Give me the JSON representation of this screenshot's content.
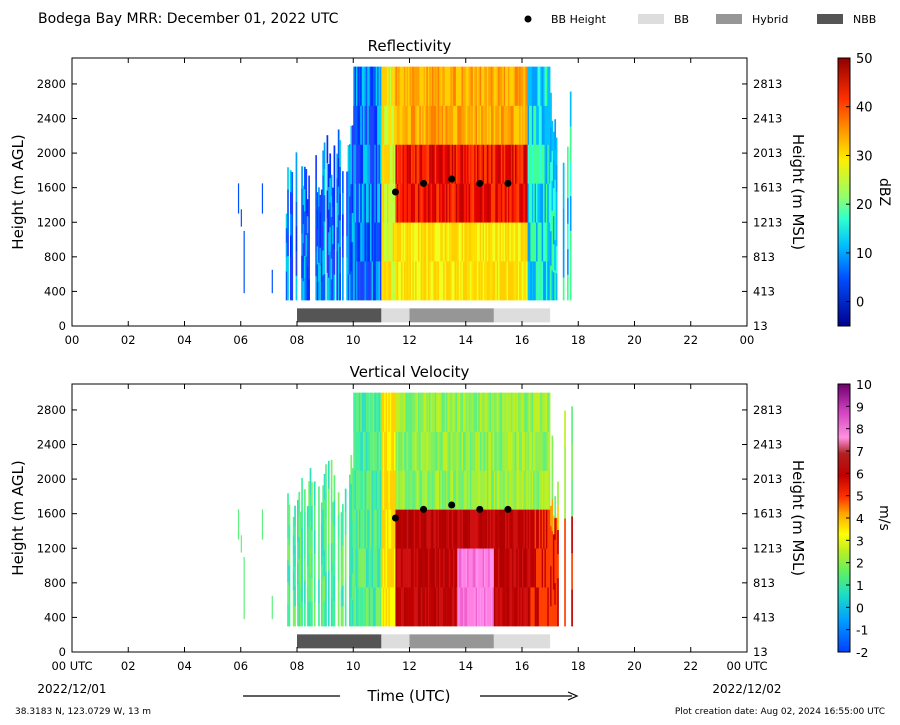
{
  "header": {
    "title": "Bodega Bay MRR:  December 01, 2022 UTC",
    "legend": [
      {
        "label": "BB Height",
        "kind": "dot",
        "color": "#000000"
      },
      {
        "label": "BB",
        "kind": "swatch",
        "color": "#dddddd"
      },
      {
        "label": "Hybrid",
        "kind": "swatch",
        "color": "#969696"
      },
      {
        "label": "NBB",
        "kind": "swatch",
        "color": "#555555"
      }
    ]
  },
  "footer": {
    "location": "38.3183 N, 123.0729 W, 13 m",
    "creation": "Plot creation date: Aug 02, 2024 16:55:00 UTC",
    "time_label": "Time (UTC)",
    "start_date": "2022/12/01",
    "end_date": "2022/12/02"
  },
  "chart_data": [
    {
      "type": "heatmap",
      "title": "Reflectivity",
      "ylabel": "Height (m AGL)",
      "ylabel_right": "Height (m MSL)",
      "x_ticks": [
        "00",
        "02",
        "04",
        "06",
        "08",
        "10",
        "12",
        "14",
        "16",
        "18",
        "20",
        "22",
        "00"
      ],
      "x_range_hours": [
        0,
        24
      ],
      "y_ticks": [
        0,
        400,
        800,
        1200,
        1600,
        2000,
        2400,
        2800
      ],
      "y_ticks_right": [
        "13",
        "413",
        "813",
        "1213",
        "1613",
        "2013",
        "2413",
        "2813"
      ],
      "ylim": [
        0,
        3100
      ],
      "colorbar": {
        "label": "dBZ",
        "min": -5,
        "max": 50,
        "ticks": [
          0,
          10,
          20,
          30,
          40,
          50
        ]
      },
      "bb_height_hours": [
        11.5,
        12.5,
        13.5,
        14.5,
        15.5
      ],
      "bb_height_m": [
        1550,
        1650,
        1700,
        1650,
        1650
      ],
      "classification": [
        {
          "class": "NBB",
          "start": 8,
          "end": 11,
          "color": "#555555"
        },
        {
          "class": "BB",
          "start": 11,
          "end": 12,
          "color": "#dddddd"
        },
        {
          "class": "Hybrid",
          "start": 12,
          "end": 15,
          "color": "#969696"
        },
        {
          "class": "BB",
          "start": 15,
          "end": 17,
          "color": "#dddddd"
        }
      ]
    },
    {
      "type": "heatmap",
      "title": "Vertical Velocity",
      "ylabel": "Height (m AGL)",
      "ylabel_right": "Height (m MSL)",
      "x_ticks": [
        "00 UTC",
        "02",
        "04",
        "06",
        "08",
        "10",
        "12",
        "14",
        "16",
        "18",
        "20",
        "22",
        "00 UTC"
      ],
      "x_range_hours": [
        0,
        24
      ],
      "y_ticks": [
        0,
        400,
        800,
        1200,
        1600,
        2000,
        2400,
        2800
      ],
      "y_ticks_right": [
        "13",
        "413",
        "813",
        "1213",
        "1613",
        "2013",
        "2413",
        "2813"
      ],
      "ylim": [
        0,
        3100
      ],
      "colorbar": {
        "label": "m/s",
        "min": -2,
        "max": 10,
        "ticks": [
          -2,
          -1,
          0,
          1,
          2,
          3,
          4,
          5,
          6,
          7,
          8,
          9,
          10
        ]
      },
      "bb_height_hours": [
        11.5,
        12.5,
        13.5,
        14.5,
        15.5
      ],
      "bb_height_m": [
        1550,
        1650,
        1700,
        1650,
        1650
      ],
      "classification": [
        {
          "class": "NBB",
          "start": 8,
          "end": 11,
          "color": "#555555"
        },
        {
          "class": "BB",
          "start": 11,
          "end": 12,
          "color": "#dddddd"
        },
        {
          "class": "Hybrid",
          "start": 12,
          "end": 15,
          "color": "#969696"
        },
        {
          "class": "BB",
          "start": 15,
          "end": 17,
          "color": "#dddddd"
        }
      ]
    }
  ]
}
